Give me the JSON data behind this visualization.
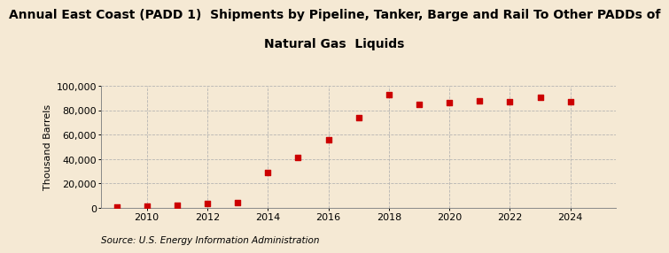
{
  "title_line1": "Annual East Coast (PADD 1)  Shipments by Pipeline, Tanker, Barge and Rail To Other PADDs of",
  "title_line2": "Natural Gas  Liquids",
  "ylabel": "Thousand Barrels",
  "source": "Source: U.S. Energy Information Administration",
  "background_color": "#f5e9d4",
  "plot_background_color": "#f5e9d4",
  "marker_color": "#cc0000",
  "grid_color": "#b0b0b0",
  "years": [
    2009,
    2010,
    2011,
    2012,
    2013,
    2014,
    2015,
    2016,
    2017,
    2018,
    2019,
    2020,
    2021,
    2022,
    2023,
    2024
  ],
  "values": [
    200,
    1200,
    2000,
    3800,
    4200,
    29000,
    41000,
    56000,
    74000,
    93000,
    85000,
    86000,
    88000,
    87000,
    91000,
    87000
  ],
  "ylim": [
    0,
    100000
  ],
  "yticks": [
    0,
    20000,
    40000,
    60000,
    80000,
    100000
  ],
  "xlim": [
    2008.5,
    2025.5
  ],
  "xticks": [
    2010,
    2012,
    2014,
    2016,
    2018,
    2020,
    2022,
    2024
  ],
  "title_fontsize": 10,
  "ylabel_fontsize": 8,
  "tick_fontsize": 8,
  "source_fontsize": 7.5
}
